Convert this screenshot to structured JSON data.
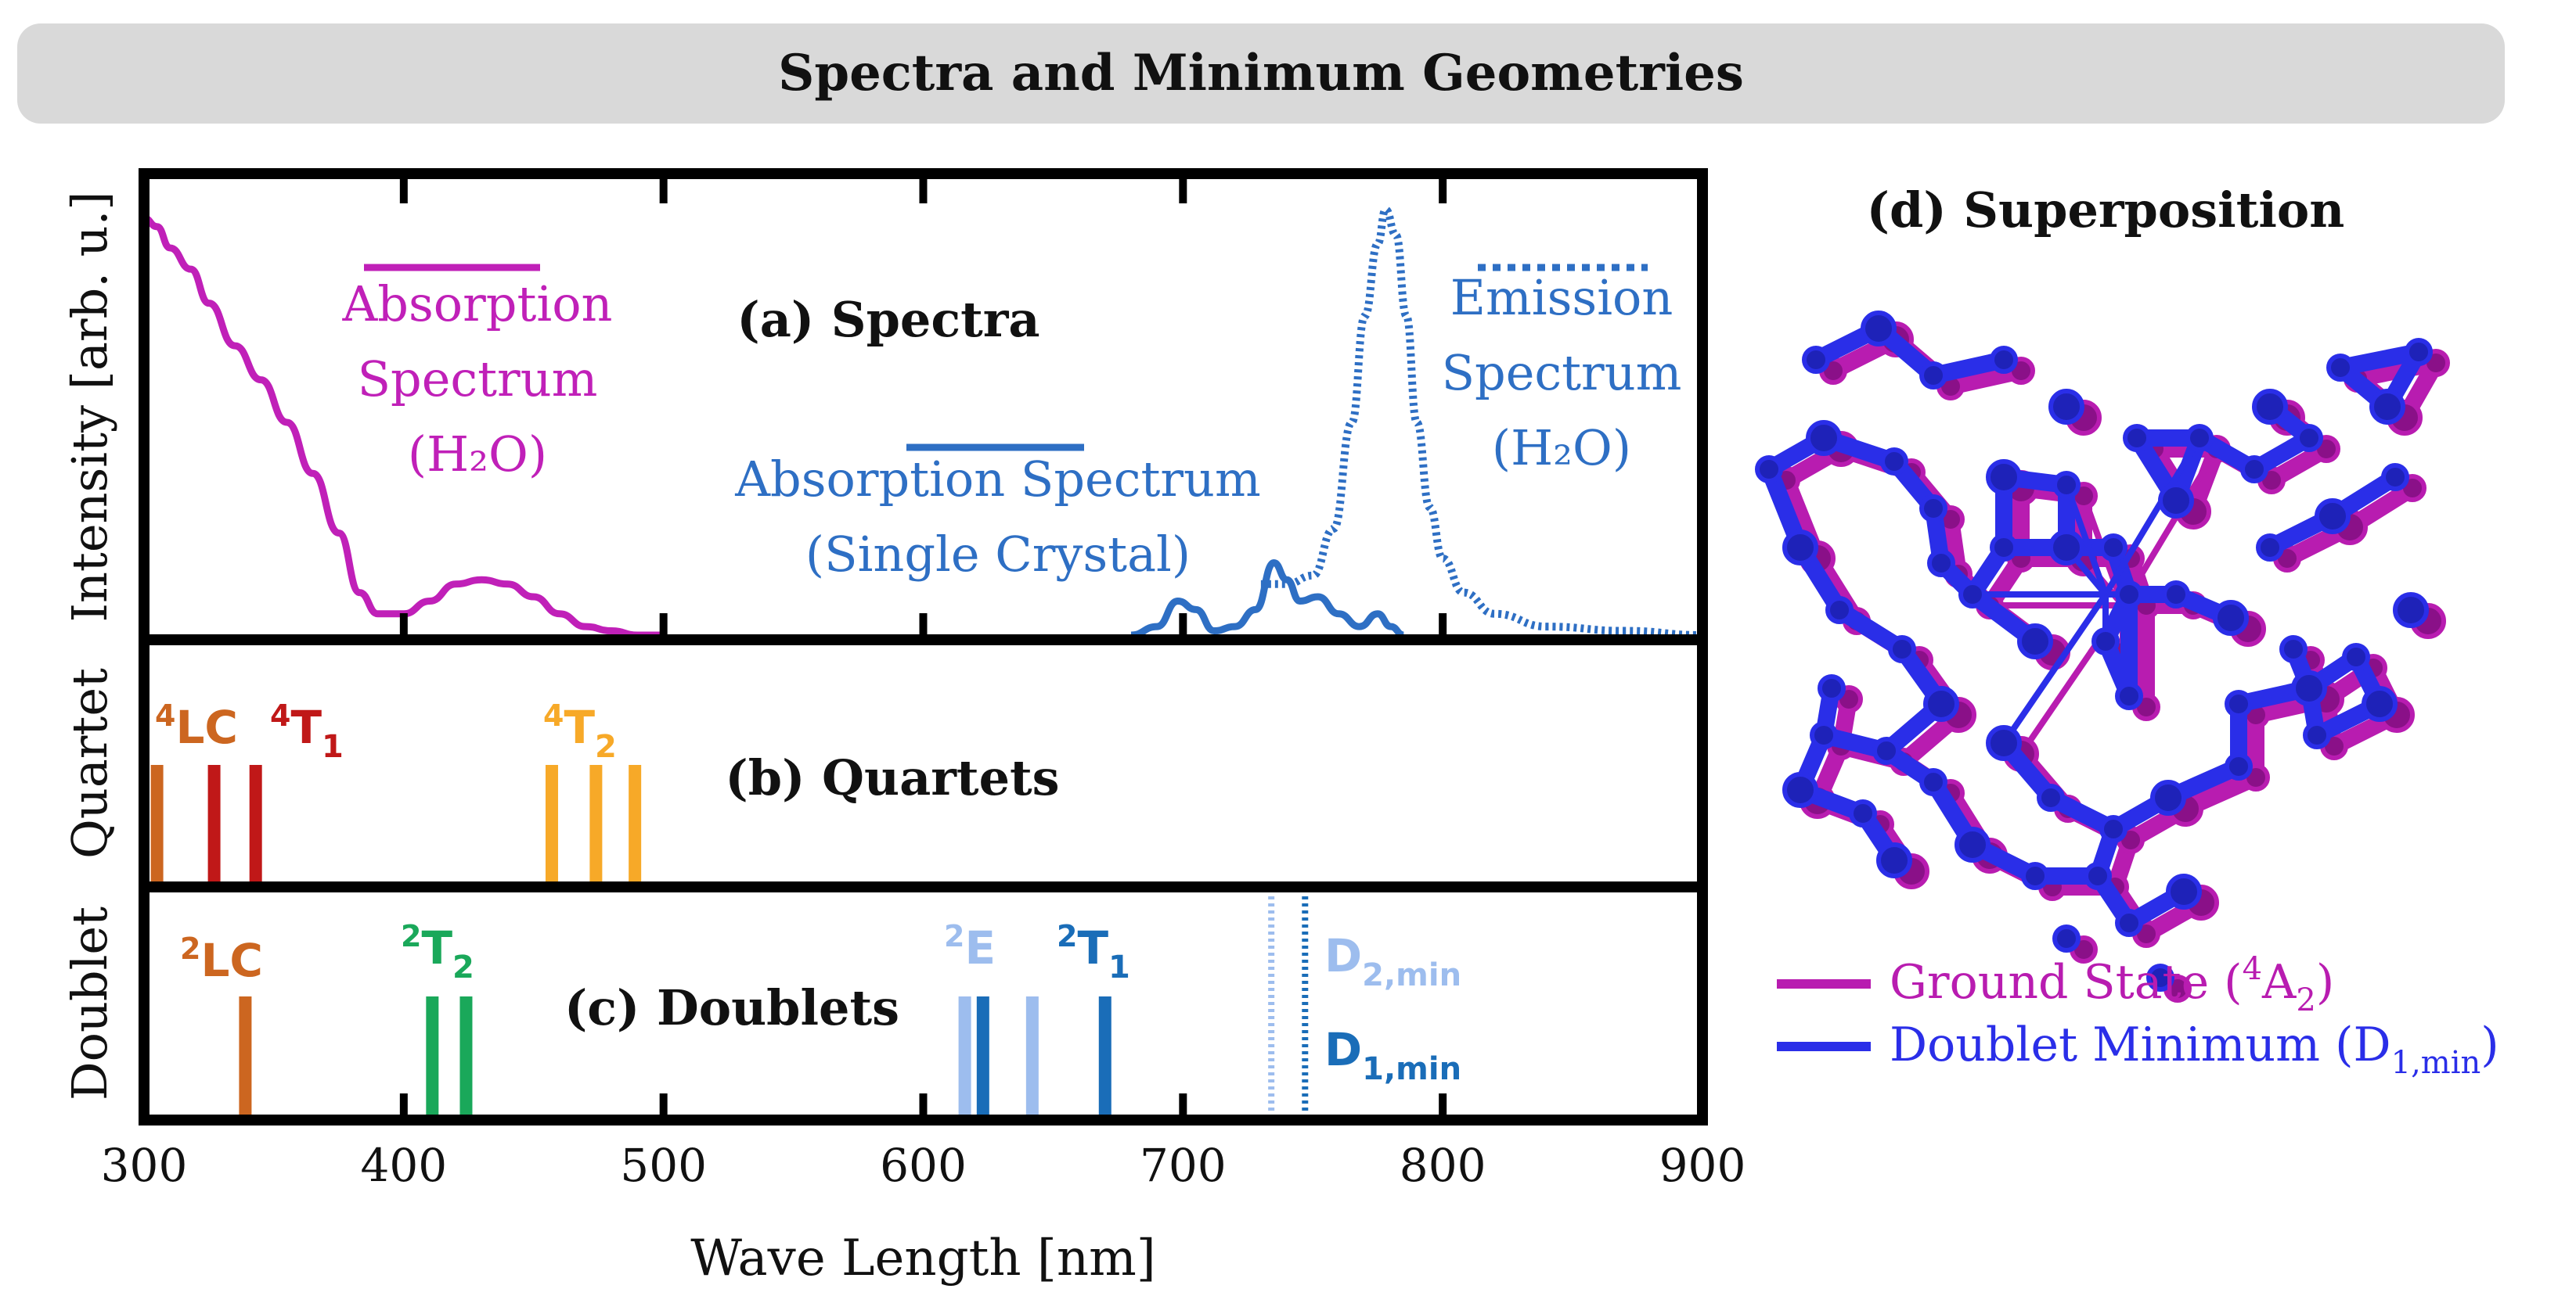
{
  "header": {
    "title": "Spectra and Minimum Geometries"
  },
  "colors": {
    "absorption_h2o": "#c020b8",
    "absorption_crystal": "#2e6fc4",
    "emission": "#2e6fc4",
    "lc_quartet": "#cc6620",
    "t1_quartet": "#c01818",
    "t2_quartet": "#f7a928",
    "lc_doublet": "#cc6620",
    "t2_doublet": "#1aa85a",
    "e_doublet": "#9dbdee",
    "t1_doublet": "#1a6db8",
    "d2_min": "#9dbdee",
    "d1_min": "#1a6db8",
    "ground_state": "#b81cb0",
    "doublet_minimum": "#2a2ee8"
  },
  "chart_data": [
    {
      "type": "line",
      "panel": "a",
      "title": "(a) Spectra",
      "ylabel": "Intensity [arb. u.]",
      "xlim": [
        300,
        900
      ],
      "ylim": [
        0,
        1.0
      ],
      "series": [
        {
          "name": "Absorption Spectrum (H2O)",
          "style": "solid",
          "x": [
            300,
            305,
            310,
            318,
            325,
            335,
            345,
            355,
            365,
            375,
            383,
            390,
            400,
            410,
            420,
            430,
            440,
            450,
            460,
            470,
            480,
            490,
            500
          ],
          "y": [
            0.98,
            0.96,
            0.91,
            0.86,
            0.78,
            0.68,
            0.6,
            0.5,
            0.38,
            0.24,
            0.1,
            0.05,
            0.05,
            0.08,
            0.12,
            0.13,
            0.12,
            0.09,
            0.05,
            0.02,
            0.01,
            0.0,
            0.0
          ]
        },
        {
          "name": "Absorption Spectrum (Single Crystal)",
          "style": "solid",
          "x": [
            680,
            690,
            698,
            705,
            712,
            720,
            728,
            735,
            740,
            745,
            752,
            760,
            768,
            775,
            780,
            785
          ],
          "y": [
            0.0,
            0.02,
            0.08,
            0.06,
            0.01,
            0.02,
            0.06,
            0.17,
            0.13,
            0.08,
            0.09,
            0.05,
            0.02,
            0.05,
            0.02,
            0.0
          ]
        },
        {
          "name": "Emission Spectrum (H2O)",
          "style": "dotted",
          "x": [
            730,
            740,
            750,
            758,
            765,
            770,
            775,
            778,
            782,
            786,
            790,
            795,
            800,
            808,
            820,
            840,
            870,
            900
          ],
          "y": [
            0.12,
            0.12,
            0.14,
            0.25,
            0.5,
            0.75,
            0.92,
            1.0,
            0.94,
            0.75,
            0.5,
            0.3,
            0.18,
            0.1,
            0.05,
            0.02,
            0.01,
            0.0
          ]
        }
      ],
      "legend_lines": [
        {
          "label_lines": [
            "Absorption",
            "Spectrum",
            "(H₂O)"
          ]
        },
        {
          "label_lines": [
            "Absorption Spectrum",
            "(Single Crystal)"
          ]
        },
        {
          "label_lines": [
            "Emission",
            "Spectrum",
            "(H₂O)"
          ]
        }
      ]
    },
    {
      "type": "bar",
      "panel": "b",
      "title": "(b) Quartets",
      "ylabel": "Quartet",
      "xlim": [
        300,
        900
      ],
      "groups": [
        {
          "label_sup": "4",
          "label": "LC",
          "color_key": "lc_quartet",
          "x": [
            305
          ]
        },
        {
          "label_sup": "4",
          "label": "T",
          "label_sub": "1",
          "color_key": "t1_quartet",
          "x": [
            327,
            343
          ]
        },
        {
          "label_sup": "4",
          "label": "T",
          "label_sub": "2",
          "color_key": "t2_quartet",
          "x": [
            457,
            474,
            489
          ]
        }
      ]
    },
    {
      "type": "bar",
      "panel": "c",
      "title": "(c) Doublets",
      "ylabel": "Doublet",
      "xlabel": "Wave Length [nm]",
      "xlim": [
        300,
        900
      ],
      "xticks": [
        300,
        400,
        500,
        600,
        700,
        800,
        900
      ],
      "groups": [
        {
          "label_sup": "2",
          "label": "LC",
          "color_key": "lc_doublet",
          "x": [
            339
          ]
        },
        {
          "label_sup": "2",
          "label": "T",
          "label_sub": "2",
          "color_key": "t2_doublet",
          "x": [
            411,
            424
          ]
        },
        {
          "label_sup": "2",
          "label": "E",
          "color_key": "e_doublet",
          "x": [
            616,
            642
          ]
        },
        {
          "label_sup": "",
          "label": "",
          "color_key": "t1_doublet",
          "x": [
            623
          ]
        },
        {
          "label_sup": "2",
          "label": "T",
          "label_sub": "1",
          "color_key": "t1_doublet",
          "x": [
            670
          ]
        }
      ],
      "minima": [
        {
          "label": "D",
          "label_sub": "2,min",
          "color_key": "d2_min",
          "x": 734
        },
        {
          "label": "D",
          "label_sub": "1,min",
          "color_key": "d1_min",
          "x": 747
        }
      ]
    }
  ],
  "panel_d": {
    "title": "(d) Superposition",
    "legend": [
      {
        "text": "Ground State (",
        "sup": "4",
        "base": "A",
        "sub": "2",
        "close": ")",
        "color_key": "ground_state"
      },
      {
        "text": "Doublet Minimum (",
        "base": "D",
        "sub": "1,min",
        "close": ")",
        "color_key": "doublet_minimum"
      }
    ]
  }
}
